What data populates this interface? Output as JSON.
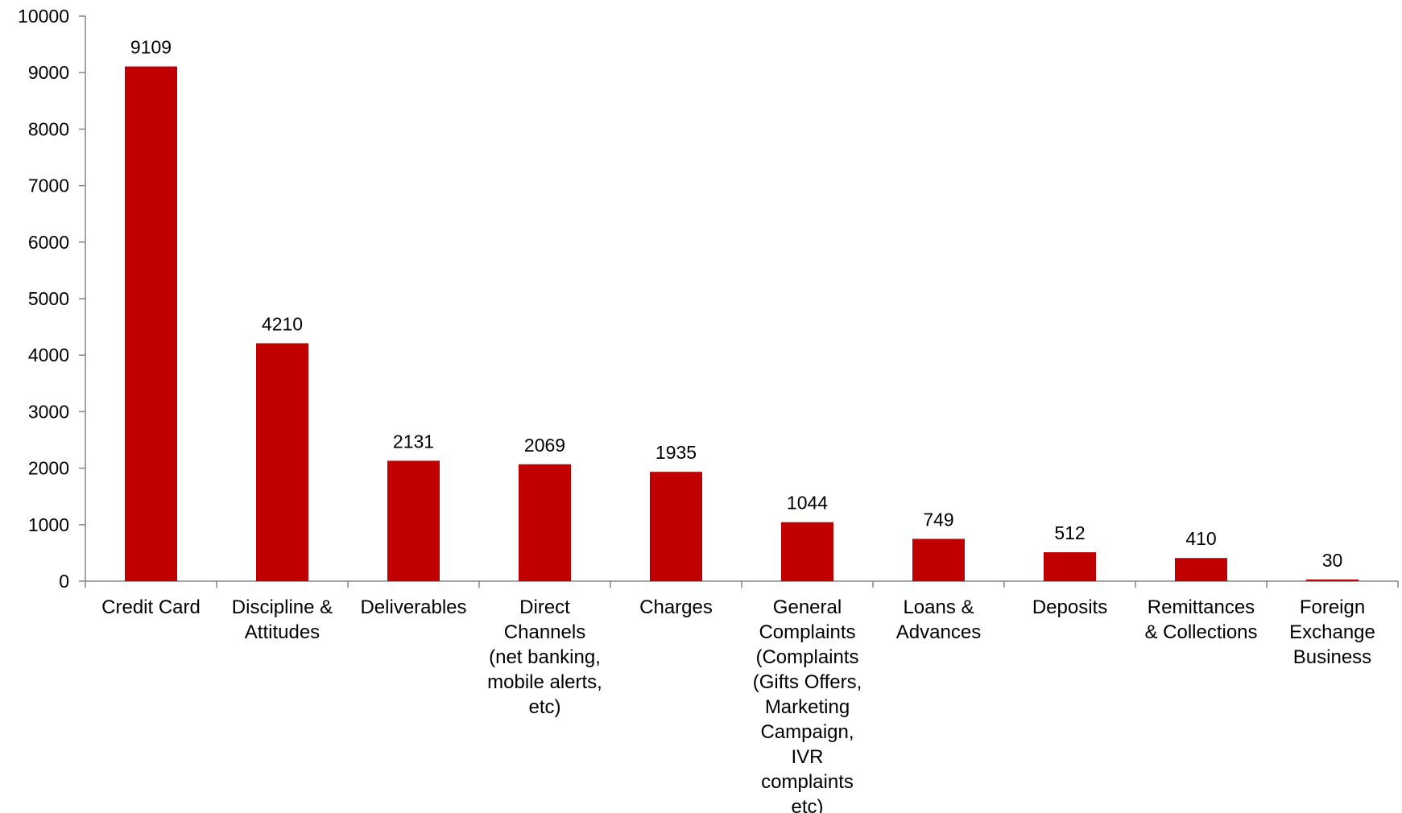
{
  "chart_data": {
    "type": "bar",
    "title": "",
    "xlabel": "",
    "ylabel": "",
    "ylim": [
      0,
      10000
    ],
    "yticks": [
      0,
      1000,
      2000,
      3000,
      4000,
      5000,
      6000,
      7000,
      8000,
      9000,
      10000
    ],
    "grid": false,
    "legend": "none",
    "bar_color": "#C00000",
    "axis_color": "#868686",
    "categories": [
      [
        "Credit Card"
      ],
      [
        "Discipline &",
        "Attitudes"
      ],
      [
        "Deliverables"
      ],
      [
        "Direct",
        "Channels",
        "(net banking,",
        "mobile alerts,",
        "etc)"
      ],
      [
        "Charges"
      ],
      [
        "General",
        "Complaints",
        "(Complaints",
        "(Gifts Offers,",
        "Marketing",
        "Campaign,",
        "IVR",
        "complaints",
        "etc)"
      ],
      [
        "Loans &",
        "Advances"
      ],
      [
        "Deposits"
      ],
      [
        "Remittances",
        "& Collections"
      ],
      [
        "Foreign",
        "Exchange",
        "Business"
      ]
    ],
    "values": [
      9109,
      4210,
      2131,
      2069,
      1935,
      1044,
      749,
      512,
      410,
      30
    ],
    "data_labels": [
      "9109",
      "4210",
      "2131",
      "2069",
      "1935",
      "1044",
      "749",
      "512",
      "410",
      "30"
    ]
  }
}
